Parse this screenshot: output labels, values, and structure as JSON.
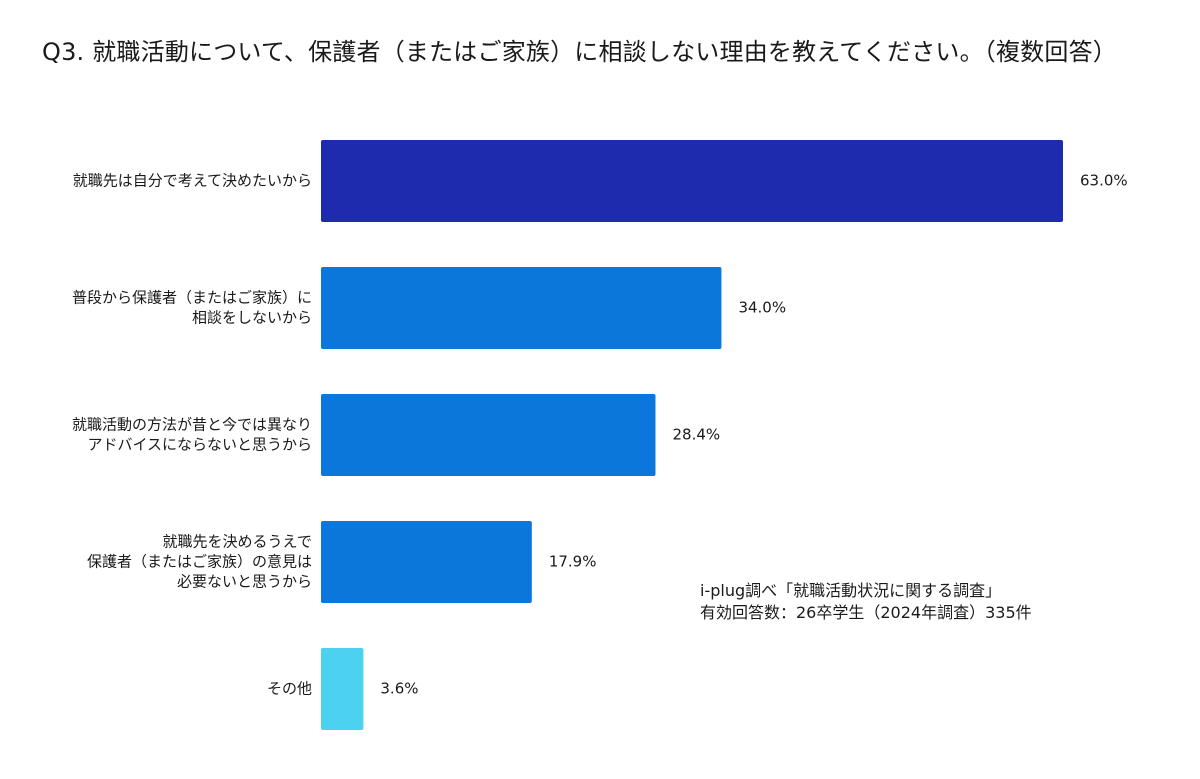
{
  "chart_data": {
    "type": "bar",
    "orientation": "horizontal",
    "title": "Q3. 就職活動について、保護者（またはご家族）に相談しない理由を教えてください。（複数回答）",
    "categories": [
      "就職先は自分で考えて決めたいから",
      "普段から保護者（またはご家族）に\n相談をしないから",
      "就職活動の方法が昔と今では異なり\nアドバイスにならないと思うから",
      "就職先を決めるうえで\n保護者（またはご家族）の意見は\n必要ないと思うから",
      "その他"
    ],
    "values": [
      63.0,
      34.0,
      28.4,
      17.9,
      3.6
    ],
    "value_labels": [
      "63.0%",
      "34.0%",
      "28.4%",
      "17.9%",
      "3.6%"
    ],
    "bar_colors": [
      "#1e2bae",
      "#0c77db",
      "#0c77db",
      "#0c77db",
      "#4dd1f0"
    ],
    "xlim": [
      0,
      63
    ],
    "grid": false,
    "legend": "none"
  },
  "note": {
    "line1": "i-plug調べ「就職活動状況に関する調査」",
    "line2": "有効回答数：26卒学生（2024年調査）335件"
  }
}
